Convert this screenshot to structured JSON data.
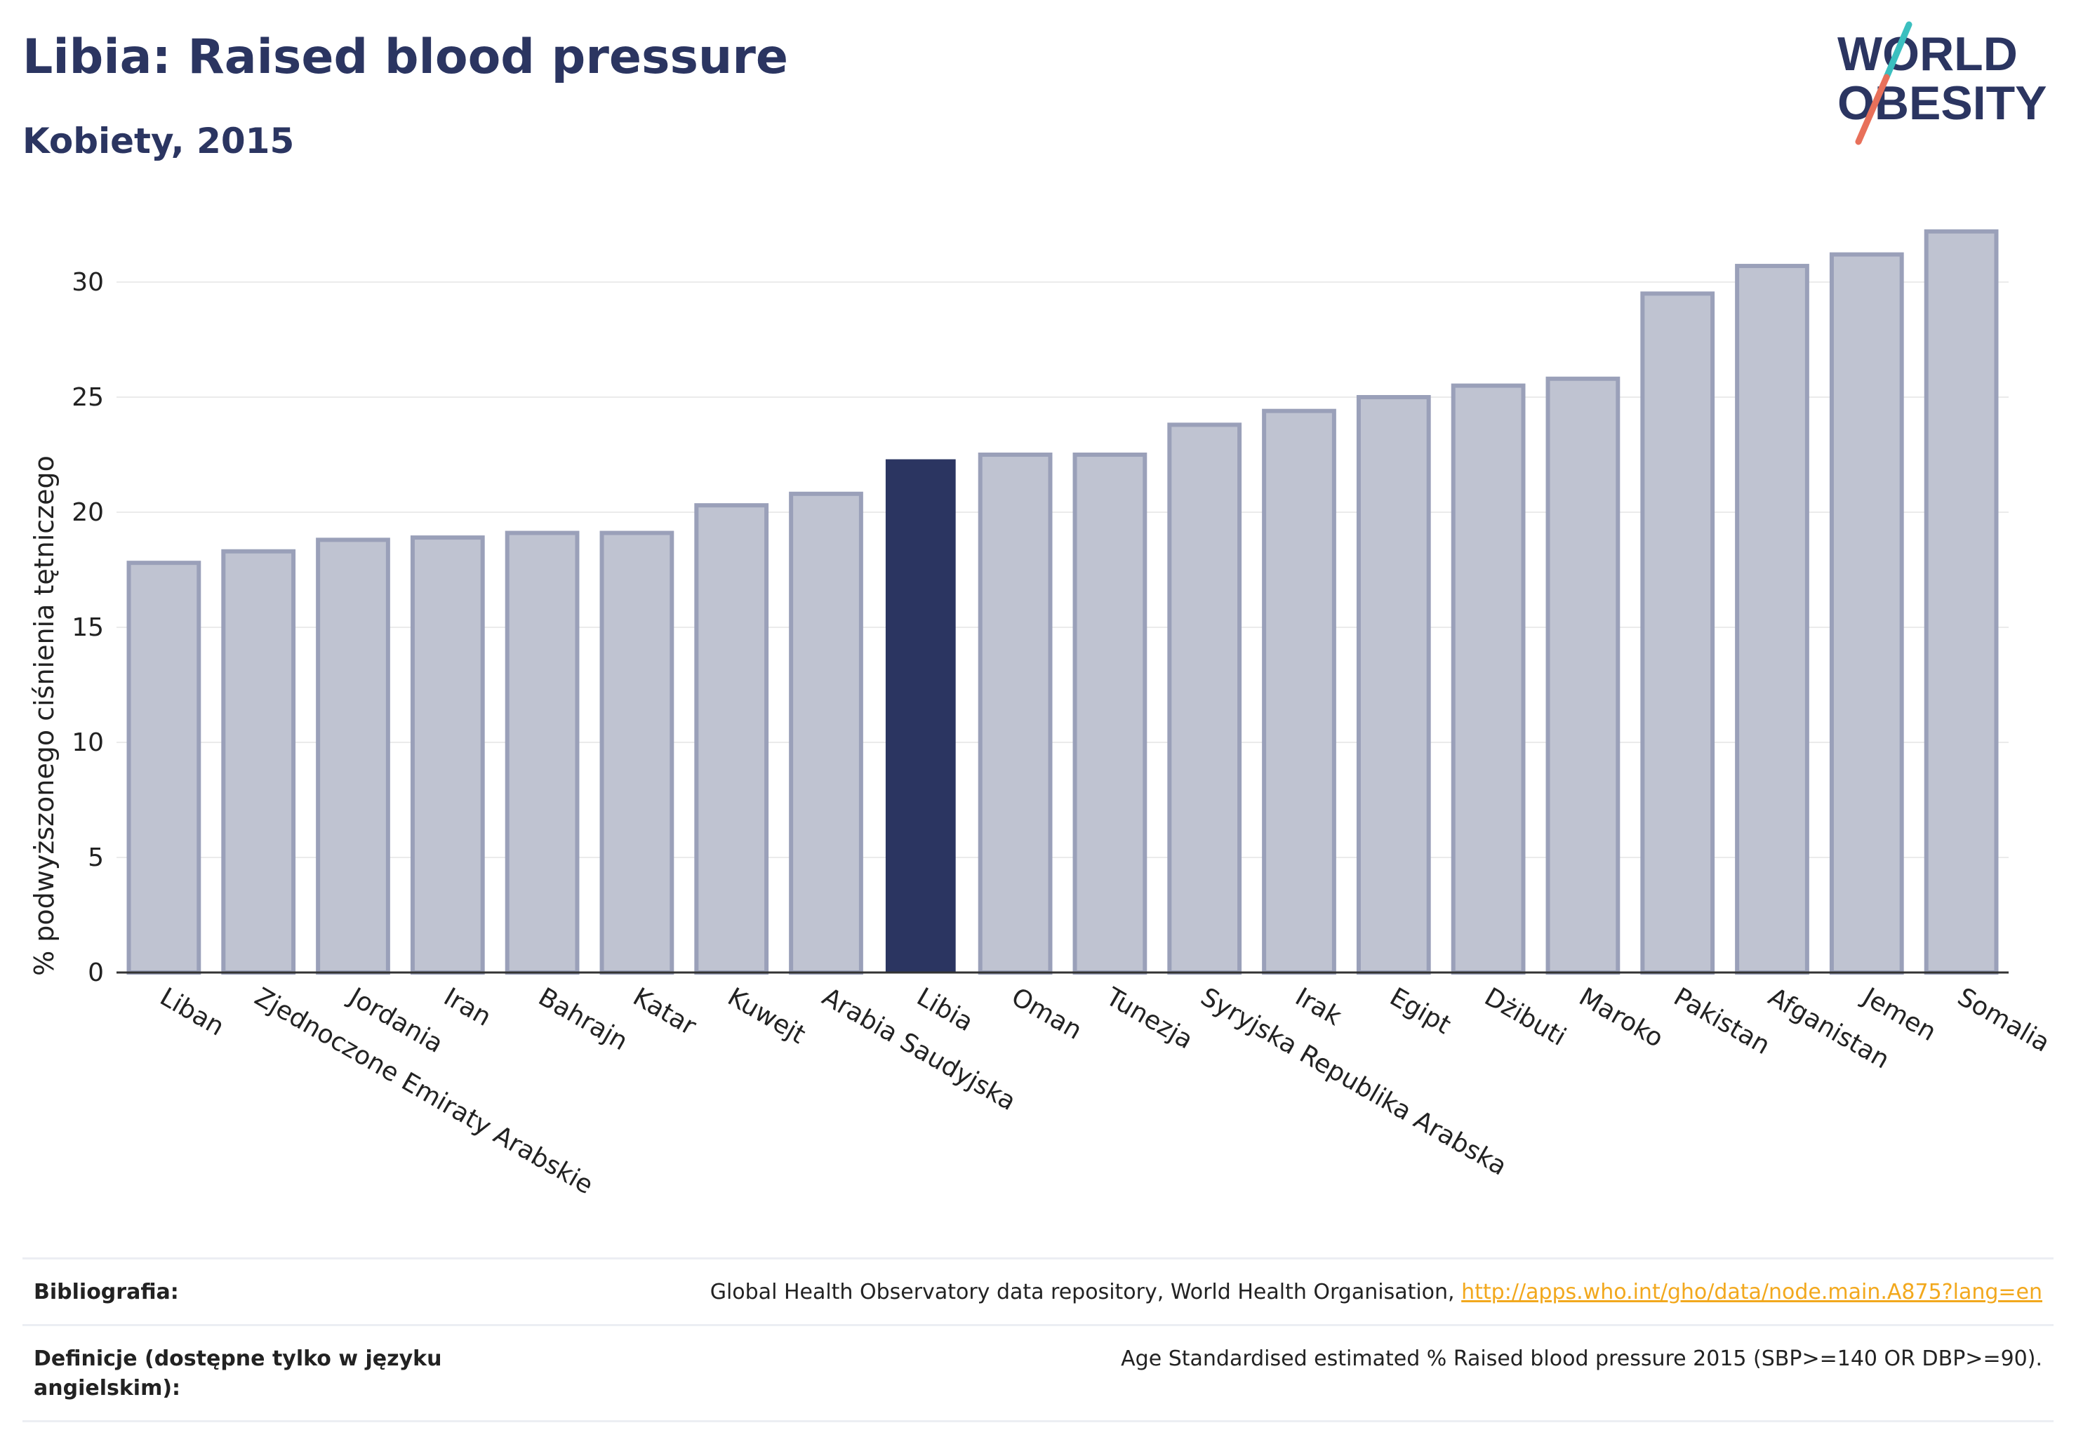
{
  "header": {
    "title": "Libia: Raised blood pressure",
    "subtitle": "Kobiety, 2015"
  },
  "logo": {
    "line1": "WORLD",
    "line2": "OBESITY",
    "colors": {
      "text": "#2b3561",
      "slash_teal": "#3bbfbf",
      "slash_red": "#e8705a"
    }
  },
  "chart_data": {
    "type": "bar",
    "title": "Libia: Raised blood pressure",
    "subtitle": "Kobiety, 2015",
    "ylabel": "% podwyższonego ciśnienia tętniczego",
    "xlabel": "",
    "ylim": [
      0,
      33
    ],
    "yticks": [
      0,
      5,
      10,
      15,
      20,
      25,
      30
    ],
    "grid": true,
    "highlight": "Libia",
    "colors": {
      "bar": "#bfc3d1",
      "bar_border": "#9aa0b9",
      "highlight": "#2b3561"
    },
    "categories": [
      "Liban",
      "Zjednoczone Emiraty Arabskie",
      "Jordania",
      "Iran",
      "Bahrajn",
      "Katar",
      "Kuwejt",
      "Arabia Saudyjska",
      "Libia",
      "Oman",
      "Tunezja",
      "Syryjska Republika Arabska",
      "Irak",
      "Egipt",
      "Dżibuti",
      "Maroko",
      "Pakistan",
      "Afganistan",
      "Jemen",
      "Somalia"
    ],
    "values": [
      17.8,
      18.3,
      18.8,
      18.9,
      19.1,
      19.1,
      20.3,
      20.8,
      22.3,
      22.5,
      22.5,
      23.8,
      24.4,
      25.0,
      25.5,
      25.8,
      29.5,
      30.7,
      31.2,
      32.2
    ]
  },
  "sources": {
    "bibliography_label": "Bibliografia:",
    "bibliography_text": "Global Health Observatory data repository, World Health Organisation,",
    "bibliography_link": "http://apps.who.int/gho/data/node.main.A875?lang=en",
    "definitions_label": "Definicje (dostępne tylko w języku angielskim):",
    "definitions_text": "Age Standardised estimated % Raised blood pressure 2015 (SBP>=140 OR DBP>=90)."
  }
}
